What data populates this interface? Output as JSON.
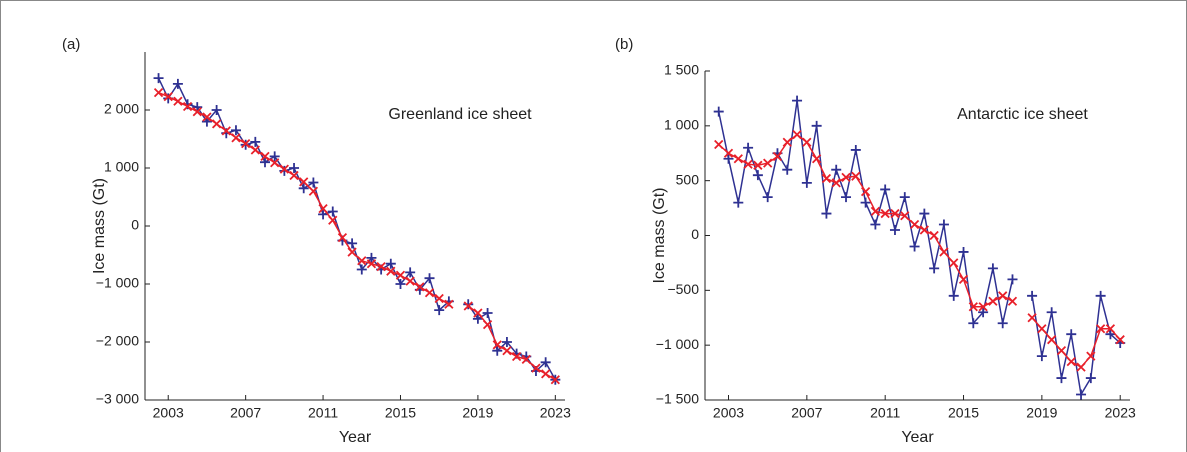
{
  "chart_data": [
    {
      "type": "line",
      "label": "(a)",
      "annotation": "Greenland ice sheet",
      "x_label": "Year",
      "y_label": "Ice mass (Gt)",
      "x": [
        2002.5,
        2003,
        2003.5,
        2004,
        2004.5,
        2005,
        2005.5,
        2006,
        2006.5,
        2007,
        2007.5,
        2008,
        2008.5,
        2009,
        2009.5,
        2010,
        2010.5,
        2011,
        2011.5,
        2012,
        2012.5,
        2013,
        2013.5,
        2014,
        2014.5,
        2015,
        2015.5,
        2016,
        2016.5,
        2017,
        2017.5,
        2018,
        2018.5,
        2019,
        2019.5,
        2020,
        2020.5,
        2021,
        2021.5,
        2022,
        2022.5,
        2023
      ],
      "series": [
        {
          "color": "#2e3192",
          "marker": "plus",
          "values": [
            2550,
            2200,
            2450,
            2100,
            2050,
            1800,
            2000,
            1600,
            1650,
            1400,
            1450,
            1100,
            1200,
            950,
            1000,
            650,
            750,
            200,
            250,
            -250,
            -300,
            -750,
            -550,
            -750,
            -650,
            -1000,
            -800,
            -1100,
            -900,
            -1450,
            -1300,
            null,
            -1350,
            -1600,
            -1500,
            -2150,
            -2000,
            -2200,
            -2250,
            -2500,
            -2350,
            -2650
          ]
        },
        {
          "color": "#e8202a",
          "marker": "cross",
          "values": [
            2300,
            2230,
            2150,
            2060,
            1970,
            1880,
            1760,
            1640,
            1520,
            1420,
            1310,
            1200,
            1090,
            980,
            870,
            760,
            600,
            300,
            100,
            -200,
            -450,
            -600,
            -650,
            -700,
            -780,
            -850,
            -950,
            -1050,
            -1150,
            -1250,
            -1350,
            null,
            -1380,
            -1500,
            -1700,
            -2050,
            -2150,
            -2250,
            -2300,
            -2450,
            -2550,
            -2650
          ]
        }
      ],
      "xlim": [
        2001.8,
        2023.5
      ],
      "xticks": [
        2003,
        2007,
        2011,
        2015,
        2019,
        2023
      ],
      "ylim": [
        -3000,
        3000
      ],
      "yticks": [
        {
          "value": 2000,
          "label": "2 000"
        },
        {
          "value": 1000,
          "label": "1 000"
        },
        0,
        {
          "value": -1000,
          "label": "−1 000"
        },
        {
          "value": -2000,
          "label": "−2 000"
        },
        {
          "value": -3000,
          "label": "−3 000"
        }
      ]
    },
    {
      "type": "line",
      "label": "(b)",
      "annotation": "Antarctic ice sheet",
      "x_label": "Year",
      "y_label": "Ice mass (Gt)",
      "x": [
        2002.5,
        2003,
        2003.5,
        2004,
        2004.5,
        2005,
        2005.5,
        2006,
        2006.5,
        2007,
        2007.5,
        2008,
        2008.5,
        2009,
        2009.5,
        2010,
        2010.5,
        2011,
        2011.5,
        2012,
        2012.5,
        2013,
        2013.5,
        2014,
        2014.5,
        2015,
        2015.5,
        2016,
        2016.5,
        2017,
        2017.5,
        2018,
        2018.5,
        2019,
        2019.5,
        2020,
        2020.5,
        2021,
        2021.5,
        2022,
        2022.5,
        2023
      ],
      "series": [
        {
          "color": "#2e3192",
          "marker": "plus",
          "values": [
            1130,
            700,
            300,
            800,
            550,
            350,
            750,
            600,
            1230,
            480,
            1000,
            200,
            600,
            350,
            780,
            300,
            100,
            420,
            50,
            350,
            -100,
            200,
            -300,
            100,
            -550,
            -150,
            -800,
            -700,
            -300,
            -800,
            -400,
            null,
            -550,
            -1100,
            -700,
            -1300,
            -900,
            -1450,
            -1300,
            -550,
            -900,
            -980
          ]
        },
        {
          "color": "#e8202a",
          "marker": "cross",
          "values": [
            830,
            750,
            700,
            650,
            640,
            660,
            720,
            850,
            920,
            850,
            700,
            520,
            480,
            530,
            540,
            400,
            220,
            200,
            200,
            180,
            100,
            50,
            0,
            -150,
            -250,
            -400,
            -650,
            -650,
            -600,
            -550,
            -600,
            null,
            -750,
            -850,
            -950,
            -1050,
            -1150,
            -1200,
            -1100,
            -850,
            -850,
            -950
          ]
        }
      ],
      "xlim": [
        2001.8,
        2023.5
      ],
      "xticks": [
        2003,
        2007,
        2011,
        2015,
        2019,
        2023
      ],
      "ylim": [
        -1500,
        1500
      ],
      "yticks": [
        {
          "value": 1500,
          "label": "1 500"
        },
        {
          "value": 1000,
          "label": "1 000"
        },
        500,
        0,
        {
          "value": -500,
          "label": "−500"
        },
        {
          "value": -1000,
          "label": "−1 000"
        },
        {
          "value": -1500,
          "label": "−1 500"
        }
      ]
    }
  ]
}
